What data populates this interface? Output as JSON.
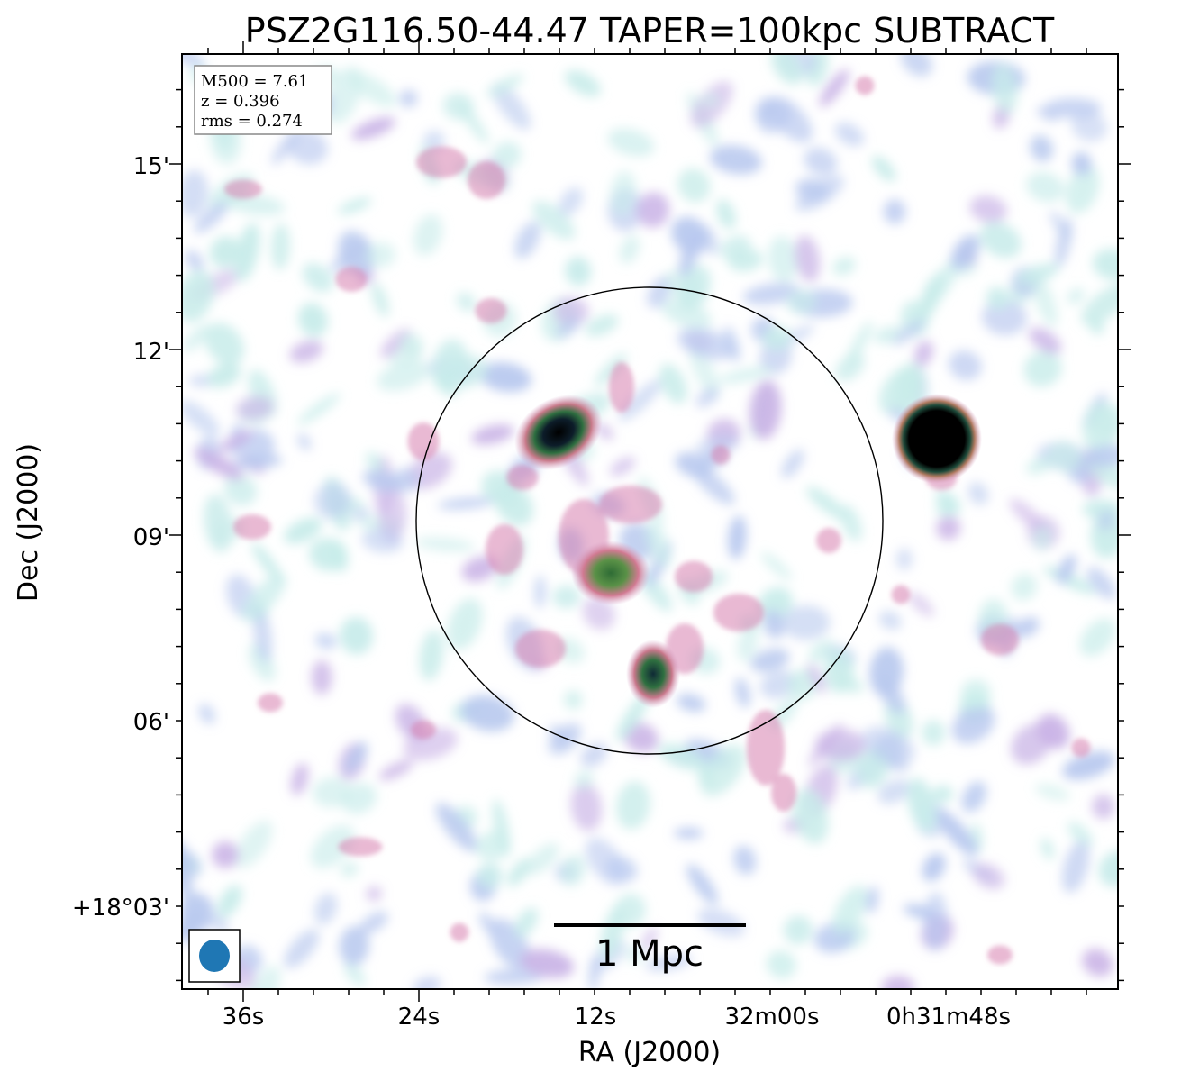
{
  "figure": {
    "title": "PSZ2G116.50-44.47 TAPER=100kpc SUBTRACT",
    "xlabel": "RA (J2000)",
    "ylabel": "Dec (J2000)",
    "x_ticks": [
      "36s",
      "24s",
      "12s",
      "32m00s",
      "0h31m48s"
    ],
    "y_ticks": [
      "15'",
      "12'",
      "09'",
      "06'",
      "+18°03'"
    ],
    "info_box": {
      "line1": "M500 = 7.61",
      "line2": "z = 0.396",
      "line3": "rms = 0.274"
    },
    "scale_bar_label": "1 Mpc",
    "colors": {
      "beam": "#1f77b4",
      "faint_emission": "#b9c9ef",
      "mid_emission": "#d77fae",
      "bright_emission": "#3f8a3a",
      "peak_emission": "#000000"
    },
    "colormap": "cubehelix-like"
  }
}
